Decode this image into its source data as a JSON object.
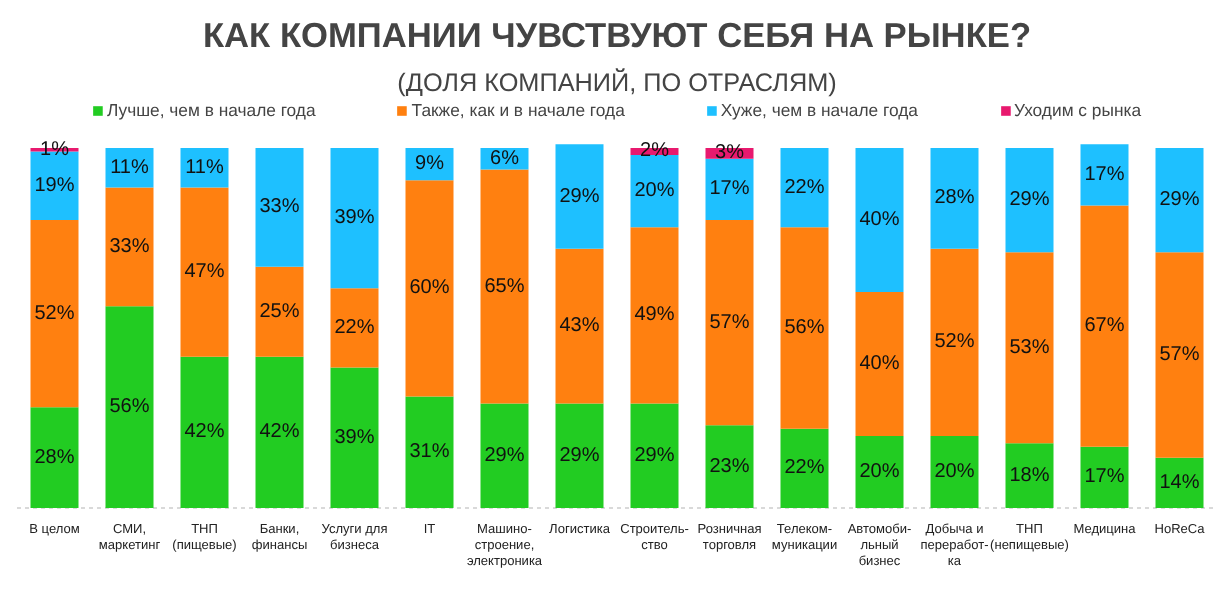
{
  "chart_data": {
    "type": "bar",
    "stacked": true,
    "title": "КАК КОМПАНИИ ЧУВСТВУЮТ СЕБЯ НА РЫНКЕ?",
    "subtitle": "(ДОЛЯ КОМПАНИЙ, ПО ОТРАСЛЯМ)",
    "categories": [
      "В целом",
      "СМИ,\nмаркетинг",
      "ТНП\n(пищевые)",
      "Банки,\nфинансы",
      "Услуги для\nбизнеса",
      "IT",
      "Машино-\nстроение,\nэлектроника",
      "Логистика",
      "Строитель-\nство",
      "Розничная\nторговля",
      "Телеком-\nмуникации",
      "Автомоби-\nльный\nбизнес",
      "Добыча и\nпереработ-\nка",
      "ТНП\n(непищевые)",
      "Медицина",
      "HoReCa"
    ],
    "series": [
      {
        "name": "Лучше, чем в начале года",
        "color": "#22cc22",
        "values": [
          28,
          56,
          42,
          42,
          39,
          31,
          29,
          29,
          29,
          23,
          22,
          20,
          20,
          18,
          17,
          14
        ],
        "value_labels": [
          "28%",
          "56%",
          "42%",
          "42%",
          "39%",
          "31%",
          "29%",
          "29%",
          "29%",
          "23%",
          "22%",
          "20%",
          "20%",
          "18%",
          "17%",
          "14%"
        ]
      },
      {
        "name": "Также, как и в начале года",
        "color": "#ff8010",
        "values": [
          52,
          33,
          47,
          25,
          22,
          60,
          65,
          43,
          49,
          57,
          56,
          40,
          52,
          53,
          67,
          57
        ],
        "value_labels": [
          "52%",
          "33%",
          "47%",
          "25%",
          "22%",
          "60%",
          "65%",
          "43%",
          "49%",
          "57%",
          "56%",
          "40%",
          "52%",
          "53%",
          "67%",
          "57%"
        ]
      },
      {
        "name": "Хуже, чем в начале года",
        "color": "#1ec0ff",
        "values": [
          19,
          11,
          11,
          33,
          39,
          9,
          6,
          29,
          20,
          17,
          22,
          40,
          28,
          29,
          17,
          29
        ],
        "value_labels": [
          "19%",
          "11%",
          "11%",
          "33%",
          "39%",
          "9%",
          "6%",
          "29%",
          "20%",
          "17%",
          "22%",
          "40%",
          "28%",
          "29%",
          "17%",
          "29%"
        ]
      },
      {
        "name": "Уходим с рынка",
        "color": "#e8196e",
        "values": [
          1,
          null,
          null,
          null,
          null,
          null,
          null,
          null,
          2,
          3,
          null,
          null,
          null,
          null,
          null,
          null
        ],
        "value_labels": [
          "1%",
          null,
          null,
          null,
          null,
          null,
          null,
          null,
          "2%",
          "3%",
          null,
          null,
          null,
          null,
          null,
          null
        ]
      }
    ],
    "legend": "top",
    "grid": false
  }
}
